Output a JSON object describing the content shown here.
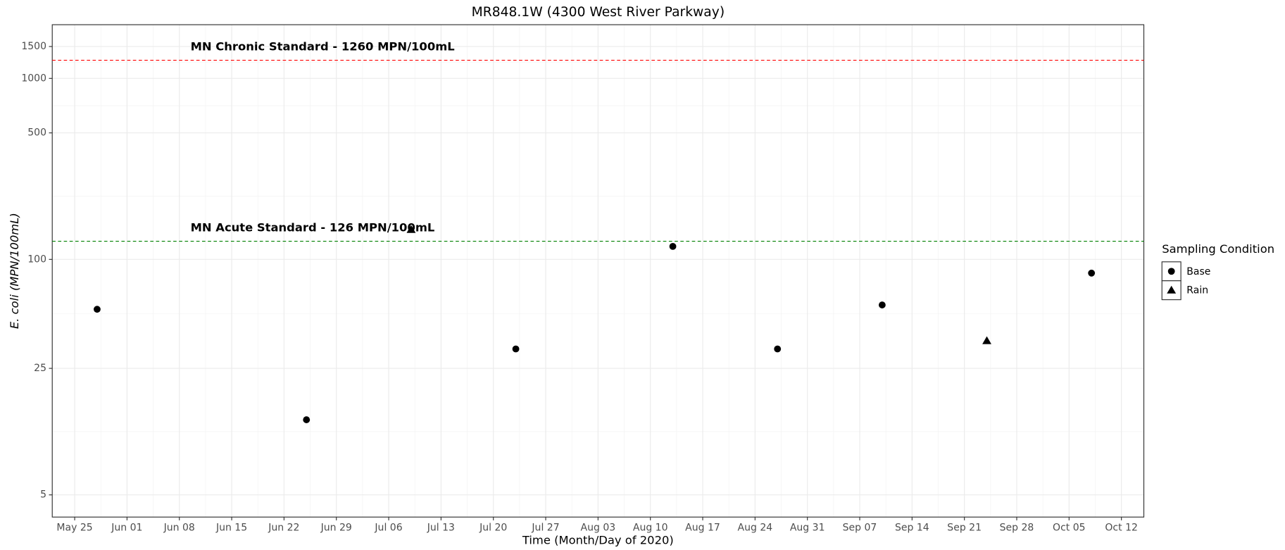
{
  "chart_data": {
    "type": "scatter",
    "title": "MR848.1W (4300 West River Parkway)",
    "xlabel": "Time (Month/Day of 2020)",
    "ylabel": "E. coli  (MPN/100mL)",
    "log_y": true,
    "grid": true,
    "xlim": [
      "2020-05-22",
      "2020-10-15"
    ],
    "xticks": [
      {
        "value": "2020-05-25",
        "label": "May 25"
      },
      {
        "value": "2020-06-01",
        "label": "Jun 01"
      },
      {
        "value": "2020-06-08",
        "label": "Jun 08"
      },
      {
        "value": "2020-06-15",
        "label": "Jun 15"
      },
      {
        "value": "2020-06-22",
        "label": "Jun 22"
      },
      {
        "value": "2020-06-29",
        "label": "Jun 29"
      },
      {
        "value": "2020-07-06",
        "label": "Jul 06"
      },
      {
        "value": "2020-07-13",
        "label": "Jul 13"
      },
      {
        "value": "2020-07-20",
        "label": "Jul 20"
      },
      {
        "value": "2020-07-27",
        "label": "Jul 27"
      },
      {
        "value": "2020-08-03",
        "label": "Aug 03"
      },
      {
        "value": "2020-08-10",
        "label": "Aug 10"
      },
      {
        "value": "2020-08-17",
        "label": "Aug 17"
      },
      {
        "value": "2020-08-24",
        "label": "Aug 24"
      },
      {
        "value": "2020-08-31",
        "label": "Aug 31"
      },
      {
        "value": "2020-09-07",
        "label": "Sep 07"
      },
      {
        "value": "2020-09-14",
        "label": "Sep 14"
      },
      {
        "value": "2020-09-21",
        "label": "Sep 21"
      },
      {
        "value": "2020-09-28",
        "label": "Sep 28"
      },
      {
        "value": "2020-10-05",
        "label": "Oct 05"
      },
      {
        "value": "2020-10-12",
        "label": "Oct 12"
      }
    ],
    "ylim": [
      3.77,
      1980
    ],
    "yticks": [
      5,
      25,
      100,
      500,
      1000,
      1500
    ],
    "legend_title": "Sampling Condition",
    "legend_position": "right",
    "series": [
      {
        "name": "Base",
        "color": "#000000",
        "shape": "circle",
        "x": [
          "2020-05-28",
          "2020-06-25",
          "2020-07-23",
          "2020-08-13",
          "2020-08-27",
          "2020-09-10",
          "2020-10-08"
        ],
        "values": [
          53,
          13,
          32,
          118,
          32,
          56,
          84
        ]
      },
      {
        "name": "Rain",
        "color": "#000000",
        "shape": "triangle",
        "x": [
          "2020-07-09",
          "2020-09-24"
        ],
        "values": [
          146,
          35.5
        ]
      }
    ],
    "reference_lines": [
      {
        "value": 1260,
        "label": "MN Chronic Standard - 1260 MPN/100mL",
        "color": "#ff0000"
      },
      {
        "value": 126,
        "label": "MN Acute Standard - 126 MPN/100mL",
        "color": "#008000"
      }
    ]
  }
}
